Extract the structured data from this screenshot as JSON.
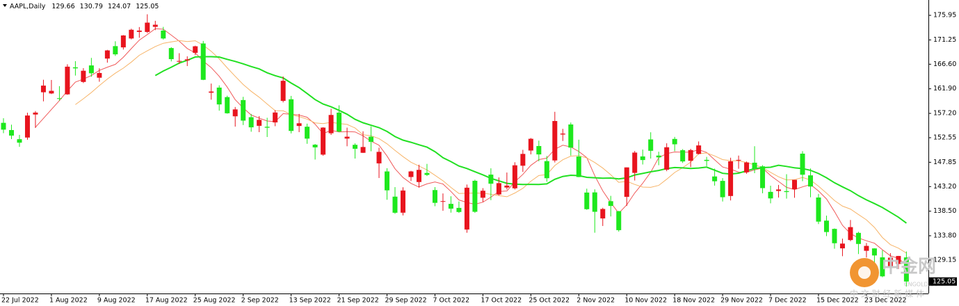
{
  "chart_data": {
    "type": "candlestick",
    "title": "AAPL,Daily",
    "up_color": "#e8141e",
    "down_color": "#1ee81e",
    "ylim": [
      122.76,
      178.88
    ],
    "yticks": [
      175.95,
      171.25,
      {
        "value": 166.6,
        "label": "166.60"
      },
      {
        "value": 161.9,
        "label": "161.90"
      },
      {
        "value": 157.2,
        "label": "157.20"
      },
      152.55,
      147.85,
      {
        "value": 143.2,
        "label": "143.20"
      },
      {
        "value": 138.5,
        "label": "138.50"
      },
      {
        "value": 133.8,
        "label": "133.80"
      },
      129.15
    ],
    "moving_averages": [
      {
        "period": 5,
        "color": "#f05a5a"
      },
      {
        "period": 10,
        "color": "#f7b468"
      },
      {
        "period": 20,
        "color": "#22e022"
      }
    ],
    "categories": [
      "22 Jul 2022",
      null,
      null,
      null,
      null,
      null,
      "1 Aug 2022",
      null,
      null,
      null,
      null,
      null,
      "9 Aug 2022",
      null,
      null,
      null,
      null,
      null,
      "17 Aug 2022",
      null,
      null,
      null,
      null,
      null,
      "25 Aug 2022",
      null,
      null,
      null,
      null,
      null,
      "2 Sep 2022",
      null,
      null,
      null,
      null,
      null,
      "13 Sep 2022",
      null,
      null,
      null,
      null,
      null,
      "21 Sep 2022",
      null,
      null,
      null,
      null,
      null,
      "29 Sep 2022",
      null,
      null,
      null,
      null,
      null,
      "7 Oct 2022",
      null,
      null,
      null,
      null,
      null,
      "17 Oct 2022",
      null,
      null,
      null,
      null,
      null,
      "25 Oct 2022",
      null,
      null,
      null,
      null,
      null,
      "2 Nov 2022",
      null,
      null,
      null,
      null,
      null,
      "10 Nov 2022",
      null,
      null,
      null,
      null,
      null,
      "18 Nov 2022",
      null,
      null,
      null,
      null,
      null,
      "29 Nov 2022",
      null,
      null,
      null,
      null,
      null,
      "7 Dec 2022",
      null,
      null,
      null,
      null,
      null,
      "15 Dec 2022",
      null,
      null,
      null,
      null,
      null,
      "23 Dec 2022",
      null,
      null,
      null,
      null,
      null
    ],
    "open": [
      155.39,
      154.01,
      152.26,
      152.58,
      156.98,
      161.24,
      161.01,
      160.1,
      160.84,
      166.01,
      163.21,
      166.37,
      164.02,
      167.68,
      170.06,
      169.82,
      171.52,
      172.78,
      172.77,
      173.75,
      173.03,
      169.69,
      167.08,
      167.32,
      168.78,
      170.57,
      161.15,
      162.13,
      160.31,
      156.64,
      159.75,
      156.47,
      154.82,
      154.64,
      155.47,
      159.59,
      159.9,
      154.79,
      154.65,
      151.21,
      149.31,
      153.4,
      157.34,
      152.38,
      151.19,
      149.66,
      152.74,
      147.64,
      146.1,
      141.28,
      138.21,
      145.03,
      144.07,
      145.81,
      142.54,
      140.42,
      139.9,
      139.13,
      134.99,
      144.31,
      141.07,
      145.49,
      141.69,
      143.02,
      142.87,
      147.19,
      150.09,
      150.96,
      148.07,
      148.2,
      153.16,
      155.08,
      148.95,
      142.06,
      142.09,
      137.11,
      140.41,
      138.5,
      141.24,
      145.82,
      148.97,
      152.22,
      149.13,
      146.43,
      152.31,
      150.16,
      148.13,
      149.45,
      148.31,
      145.14,
      144.29,
      141.4,
      148.21,
      145.96,
      147.77,
      147.07,
      142.19,
      142.36,
      142.34,
      142.7,
      149.5,
      145.35,
      141.11,
      136.69,
      135.11,
      131.39,
      132.98,
      134.35,
      130.92,
      131.38,
      129.67,
      127.99,
      128.41,
      129.66
    ],
    "high": [
      156.28,
      155.04,
      153.09,
      157.33,
      157.64,
      163.63,
      163.59,
      162.41,
      166.59,
      167.19,
      165.85,
      167.81,
      165.82,
      169.34,
      170.99,
      172.17,
      173.39,
      173.71,
      176.15,
      174.9,
      173.74,
      169.86,
      168.71,
      168.11,
      170.14,
      171.05,
      162.9,
      162.56,
      160.58,
      158.42,
      160.36,
      157.09,
      156.67,
      156.36,
      157.82,
      164.26,
      160.54,
      157.1,
      155.24,
      151.35,
      154.56,
      158.08,
      158.74,
      154.47,
      151.47,
      153.77,
      154.72,
      150.64,
      146.72,
      143.1,
      143.07,
      146.22,
      147.38,
      147.54,
      143.1,
      141.89,
      141.35,
      140.36,
      143.59,
      144.52,
      142.9,
      146.7,
      144.95,
      145.89,
      147.85,
      150.23,
      152.49,
      151.99,
      149.05,
      157.5,
      154.24,
      155.45,
      152.17,
      142.8,
      142.67,
      139.15,
      141.43,
      138.55,
      146.87,
      150.01,
      150.28,
      153.59,
      149.87,
      151.48,
      152.7,
      150.37,
      150.42,
      151.83,
      148.88,
      146.64,
      144.81,
      148.72,
      149.13,
      148.0,
      150.92,
      147.3,
      143.37,
      143.52,
      145.57,
      144.5,
      149.97,
      146.66,
      141.8,
      137.65,
      135.2,
      133.25,
      136.81,
      134.56,
      132.42,
      131.41,
      131.03,
      130.48,
      129.95,
      130.79
    ],
    "low": [
      153.41,
      152.28,
      150.8,
      152.16,
      154.41,
      159.5,
      160.89,
      159.63,
      160.75,
      164.43,
      163.0,
      164.2,
      163.25,
      166.9,
      168.19,
      169.4,
      171.35,
      171.66,
      172.57,
      173.12,
      171.31,
      167.14,
      166.65,
      166.25,
      168.35,
      163.56,
      159.82,
      157.72,
      157.14,
      154.67,
      154.97,
      153.69,
      153.61,
      152.68,
      154.75,
      159.3,
      153.37,
      153.61,
      151.38,
      148.37,
      149.1,
      153.08,
      153.6,
      150.91,
      148.56,
      149.64,
      149.95,
      144.84,
      140.68,
      138.0,
      137.69,
      144.26,
      143.01,
      145.22,
      139.45,
      138.57,
      138.22,
      138.16,
      134.37,
      138.19,
      140.27,
      140.61,
      141.5,
      142.65,
      142.65,
      146.0,
      149.36,
      148.04,
      144.13,
      147.82,
      151.92,
      149.13,
      145.0,
      138.75,
      134.38,
      135.67,
      137.49,
      134.59,
      139.5,
      144.37,
      147.43,
      148.56,
      147.29,
      146.15,
      149.97,
      147.72,
      146.93,
      149.34,
      147.12,
      143.38,
      140.35,
      140.55,
      146.61,
      145.65,
      145.77,
      141.92,
      140.0,
      141.1,
      140.9,
      141.06,
      144.24,
      141.16,
      136.03,
      133.73,
      131.32,
      129.89,
      132.75,
      130.3,
      129.64,
      128.72,
      125.87,
      127.73,
      127.43,
      124.07
    ],
    "close": [
      154.09,
      152.95,
      151.6,
      156.79,
      157.35,
      162.51,
      161.51,
      160.01,
      166.13,
      165.81,
      165.35,
      164.87,
      164.92,
      169.24,
      168.49,
      172.1,
      173.19,
      173.03,
      174.55,
      174.15,
      171.52,
      167.57,
      167.23,
      167.53,
      170.03,
      163.62,
      161.38,
      158.91,
      157.22,
      157.96,
      155.81,
      154.53,
      155.96,
      154.46,
      157.37,
      163.43,
      153.84,
      155.31,
      152.37,
      150.7,
      154.48,
      156.9,
      153.72,
      152.74,
      150.43,
      150.77,
      151.76,
      149.84,
      142.48,
      138.2,
      142.45,
      146.1,
      146.4,
      145.43,
      140.09,
      140.42,
      138.98,
      138.34,
      142.99,
      138.38,
      142.41,
      143.75,
      143.86,
      143.39,
      147.27,
      149.45,
      152.34,
      149.35,
      144.8,
      155.74,
      153.34,
      150.65,
      145.03,
      138.88,
      138.38,
      138.92,
      139.5,
      134.87,
      146.87,
      149.7,
      148.28,
      150.04,
      148.79,
      150.72,
      151.29,
      148.01,
      150.18,
      151.07,
      148.11,
      144.22,
      141.17,
      148.03,
      148.31,
      147.81,
      146.63,
      142.91,
      140.94,
      142.65,
      142.16,
      144.49,
      145.47,
      143.21,
      136.5,
      134.51,
      132.37,
      132.3,
      135.45,
      132.23,
      131.86,
      130.03,
      126.04,
      129.61,
      129.93,
      125.05
    ]
  },
  "watermark": {
    "brand": "中金网",
    "site": "CNGOLD.COM",
    "slogan": "中 文 财 经 新 媒 体"
  }
}
